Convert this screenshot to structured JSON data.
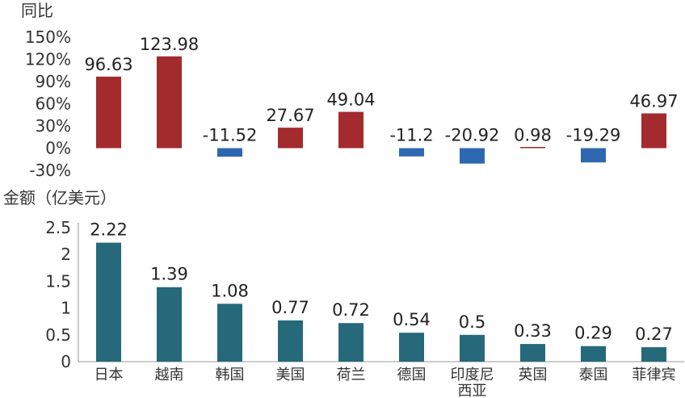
{
  "chart_data": [
    {
      "type": "bar",
      "ylabel": "同比",
      "yticks": [
        "150%",
        "120%",
        "90%",
        "60%",
        "30%",
        "0%",
        "-30%"
      ],
      "ylim": [
        -30,
        150
      ],
      "categories": [
        "日本",
        "越南",
        "韩国",
        "美国",
        "荷兰",
        "德国",
        "印度尼西亚",
        "英国",
        "泰国",
        "菲律宾"
      ],
      "values": [
        96.63,
        123.98,
        -11.52,
        27.67,
        49.04,
        -11.2,
        -20.92,
        0.98,
        -19.29,
        46.97
      ],
      "value_labels": [
        "96.63",
        "123.98",
        "-11.52",
        "27.67",
        "49.04",
        "-11.2",
        "-20.92",
        "0.98",
        "-19.29",
        "46.97"
      ],
      "colors": {
        "positive": "#a32a2d",
        "negative": "#2e68b0"
      },
      "grid": false
    },
    {
      "type": "bar",
      "ylabel": "金额（亿美元）",
      "yticks": [
        "2.5",
        "2",
        "1.5",
        "1",
        "0.5",
        "0"
      ],
      "ylim": [
        0,
        2.5
      ],
      "categories": [
        "日本",
        "越南",
        "韩国",
        "美国",
        "荷兰",
        "德国",
        "印度尼西亚",
        "英国",
        "泰国",
        "菲律宾"
      ],
      "category_labels": [
        [
          "日本"
        ],
        [
          "越南"
        ],
        [
          "韩国"
        ],
        [
          "美国"
        ],
        [
          "荷兰"
        ],
        [
          "德国"
        ],
        [
          "印度尼",
          "西亚"
        ],
        [
          "英国"
        ],
        [
          "泰国"
        ],
        [
          "菲律宾"
        ]
      ],
      "values": [
        2.22,
        1.39,
        1.08,
        0.77,
        0.72,
        0.54,
        0.5,
        0.33,
        0.29,
        0.27
      ],
      "value_labels": [
        "2.22",
        "1.39",
        "1.08",
        "0.77",
        "0.72",
        "0.54",
        "0.5",
        "0.33",
        "0.29",
        "0.27"
      ],
      "colors": {
        "bar": "#25697a"
      },
      "grid": false
    }
  ]
}
